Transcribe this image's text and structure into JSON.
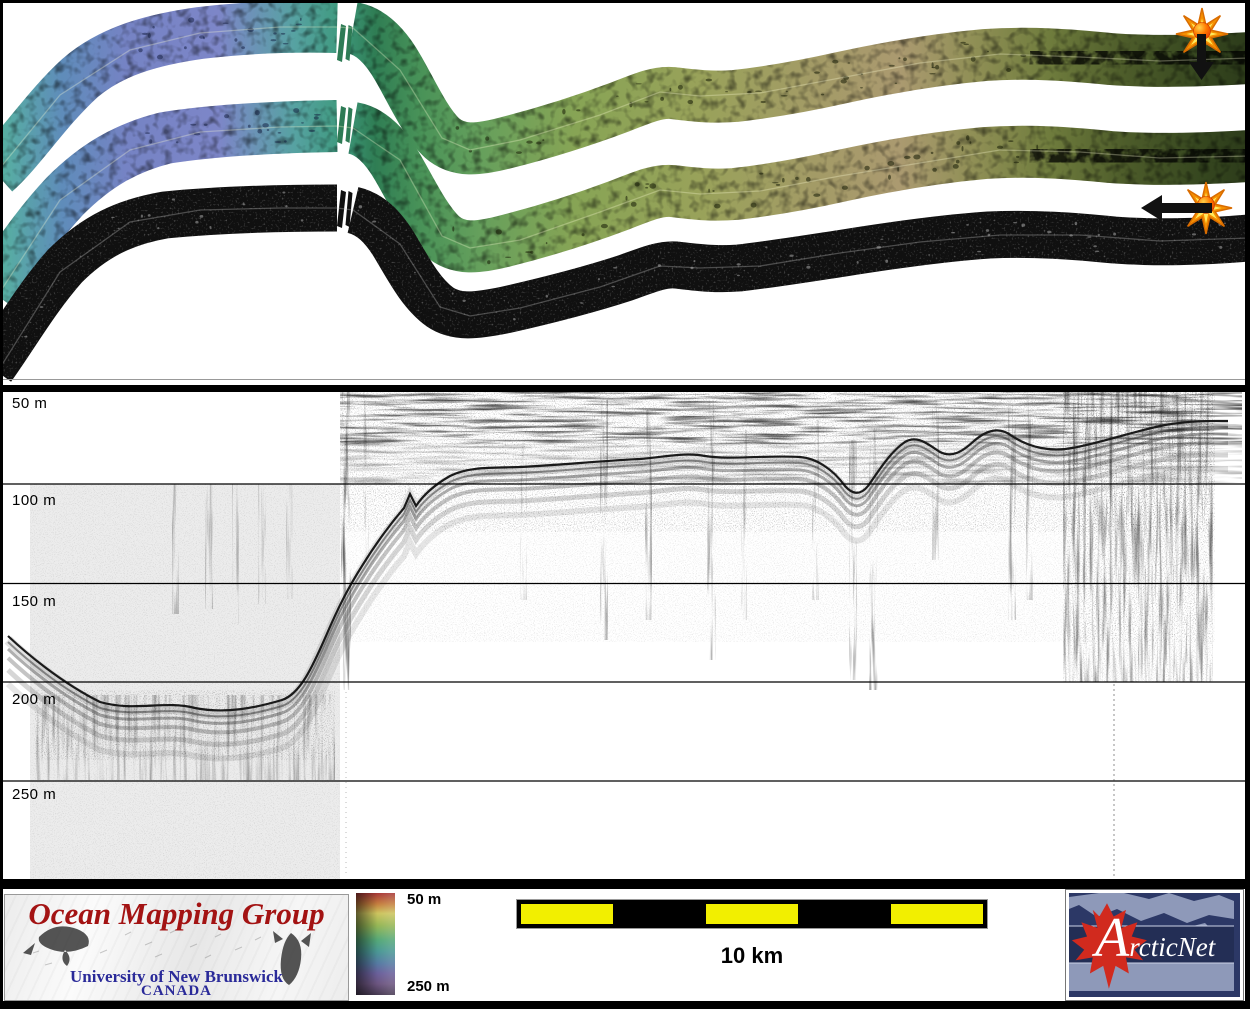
{
  "seismic": {
    "depth_labels": [
      "50 m",
      "100 m",
      "150 m",
      "200 m",
      "250 m"
    ]
  },
  "colorbar": {
    "top_label": "50 m",
    "bottom_label": "250 m"
  },
  "scalebar": {
    "label": "10 km"
  },
  "logos": {
    "omg": {
      "title": "Ocean Mapping Group",
      "university": "University of New Brunswick",
      "country": "CANADA"
    },
    "arcticnet": {
      "name": "ArcticNet"
    }
  },
  "colors": {
    "scalebar_yellow": "#f2ef00",
    "arcticnet_navy": "#2c3866",
    "omg_red": "#a31313",
    "omg_blue": "#2a2a99"
  }
}
